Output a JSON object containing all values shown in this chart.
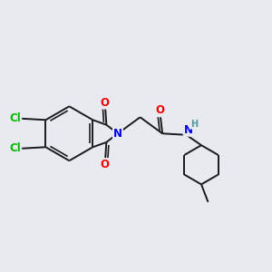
{
  "background_color": "#e8eaf0",
  "bond_color": "#1a1a1a",
  "bond_width": 1.4,
  "atom_colors": {
    "N": "#0000ee",
    "O": "#ee0000",
    "Cl": "#00bb00",
    "H": "#559999",
    "C": "#1a1a1a"
  },
  "font_size": 8.5
}
